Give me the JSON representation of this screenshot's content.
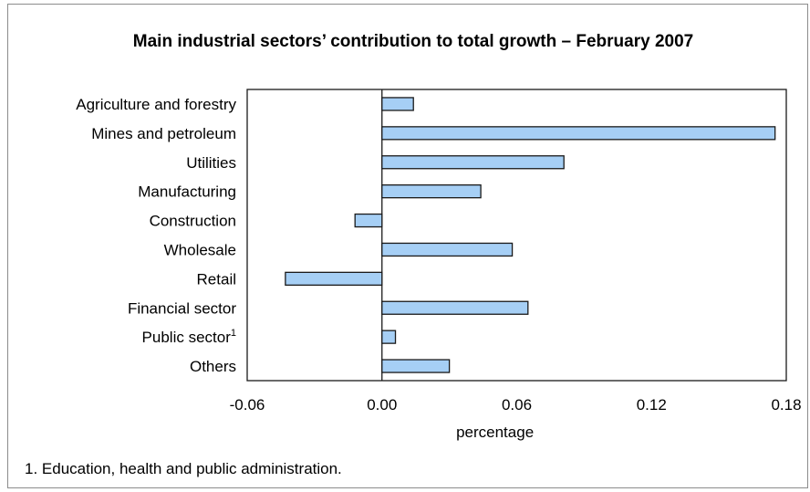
{
  "chart_data": {
    "type": "bar",
    "orientation": "horizontal",
    "title": "Main industrial sectors’ contribution to total growth – February 2007",
    "categories": [
      "Agriculture and forestry",
      "Mines and petroleum",
      "Utilities",
      "Manufacturing",
      "Construction",
      "Wholesale",
      "Retail",
      "Financial sector",
      "Public sector",
      "Others"
    ],
    "category_superscripts": [
      "",
      "",
      "",
      "",
      "",
      "",
      "",
      "",
      "1",
      ""
    ],
    "values": [
      0.014,
      0.175,
      0.081,
      0.044,
      -0.012,
      0.058,
      -0.043,
      0.065,
      0.006,
      0.03
    ],
    "xlabel": "percentage",
    "ylabel": "",
    "xlim": [
      -0.06,
      0.18
    ],
    "xticks": [
      "-0.06",
      "0.00",
      "0.06",
      "0.12",
      "0.18"
    ],
    "xtick_values": [
      -0.06,
      0.0,
      0.06,
      0.12,
      0.18
    ],
    "grid": false,
    "bar_color": "#a6cff5",
    "footnote": "1. Education, health and public administration."
  }
}
